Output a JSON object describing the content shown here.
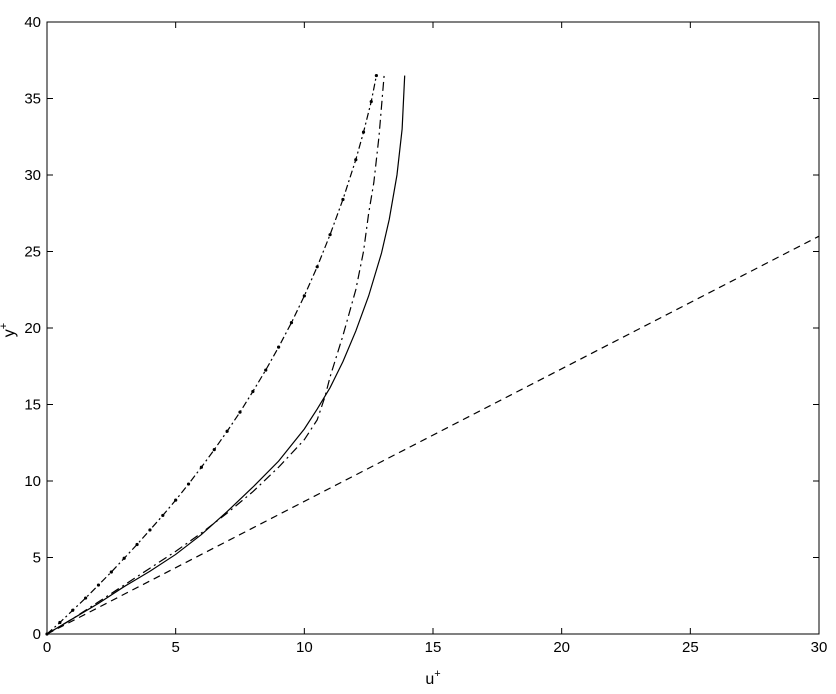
{
  "chart_data": {
    "type": "line",
    "title": "",
    "xlabel": "u",
    "xlabel_sup": "+",
    "ylabel": "y",
    "ylabel_sup": "+",
    "xlim": [
      0,
      30
    ],
    "ylim": [
      0,
      40
    ],
    "xticks": [
      0,
      5,
      10,
      15,
      20,
      25,
      30
    ],
    "yticks": [
      0,
      5,
      10,
      15,
      20,
      25,
      30,
      35,
      40
    ],
    "xtick_labels": [
      "0",
      "5",
      "10",
      "15",
      "20",
      "25",
      "30"
    ],
    "ytick_labels": [
      "0",
      "5",
      "10",
      "15",
      "20",
      "25",
      "30",
      "35",
      "40"
    ],
    "grid": false,
    "legend": "none",
    "series": [
      {
        "style": "solid",
        "color": "#000000",
        "x": [
          0,
          1,
          2,
          3,
          4,
          5,
          6,
          7,
          8,
          9,
          10,
          10.5,
          11,
          11.5,
          12,
          12.5,
          13,
          13.3,
          13.6,
          13.8,
          13.9
        ],
        "y": [
          0,
          1.0,
          2.0,
          3.1,
          4.1,
          5.2,
          6.5,
          8.0,
          9.6,
          11.3,
          13.4,
          14.7,
          16.1,
          17.8,
          19.8,
          22.1,
          24.9,
          27.1,
          30.0,
          33.0,
          36.5
        ]
      },
      {
        "style": "dash-dot",
        "color": "#000000",
        "x": [
          0,
          1,
          2,
          3,
          4,
          5,
          6,
          7,
          8,
          9,
          10,
          10.5,
          10.8,
          11.0,
          11.5,
          12.0,
          12.3,
          12.5,
          12.7,
          12.9,
          13.1
        ],
        "y": [
          0,
          1.0,
          2.1,
          3.2,
          4.3,
          5.4,
          6.6,
          7.9,
          9.3,
          10.9,
          12.7,
          14.0,
          15.5,
          16.8,
          19.5,
          22.5,
          25.0,
          27.5,
          29.5,
          32.5,
          36.5
        ]
      },
      {
        "style": "dash-dot-marker",
        "color": "#000000",
        "x": [
          0,
          0.5,
          1,
          1.5,
          2,
          2.5,
          3,
          3.5,
          4,
          4.5,
          5,
          5.5,
          6,
          6.5,
          7,
          7.5,
          8,
          8.5,
          9,
          9.5,
          10,
          10.5,
          11,
          11.5,
          12,
          12.3,
          12.6,
          12.8
        ],
        "y": [
          0,
          0.75,
          1.55,
          2.35,
          3.2,
          4.05,
          4.95,
          5.85,
          6.8,
          7.75,
          8.75,
          9.8,
          10.9,
          12.05,
          13.25,
          14.5,
          15.85,
          17.25,
          18.75,
          20.35,
          22.1,
          24.0,
          26.1,
          28.4,
          31.0,
          32.8,
          34.8,
          36.5
        ]
      },
      {
        "style": "dashed",
        "color": "#000000",
        "x": [
          0,
          30
        ],
        "y": [
          0,
          26
        ]
      }
    ]
  }
}
